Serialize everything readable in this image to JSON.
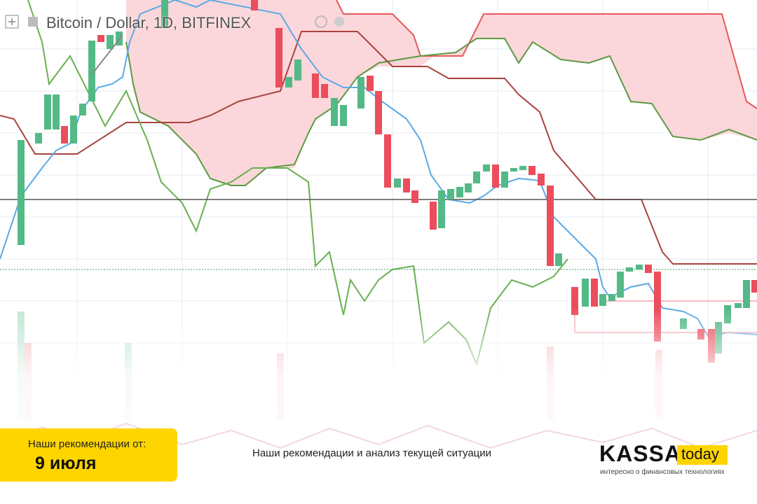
{
  "header": {
    "title": "Bitcoin / Dollar, 1D, BITFINEX"
  },
  "banner": {
    "label": "Наши рекомендации от:",
    "date": "9 июля",
    "caption": "Наши рекомендации и анализ текущей ситуации",
    "logo": {
      "brand": "KASSA",
      "badge": "today",
      "tagline": "интересно о финансовых технологиях"
    }
  }
}
